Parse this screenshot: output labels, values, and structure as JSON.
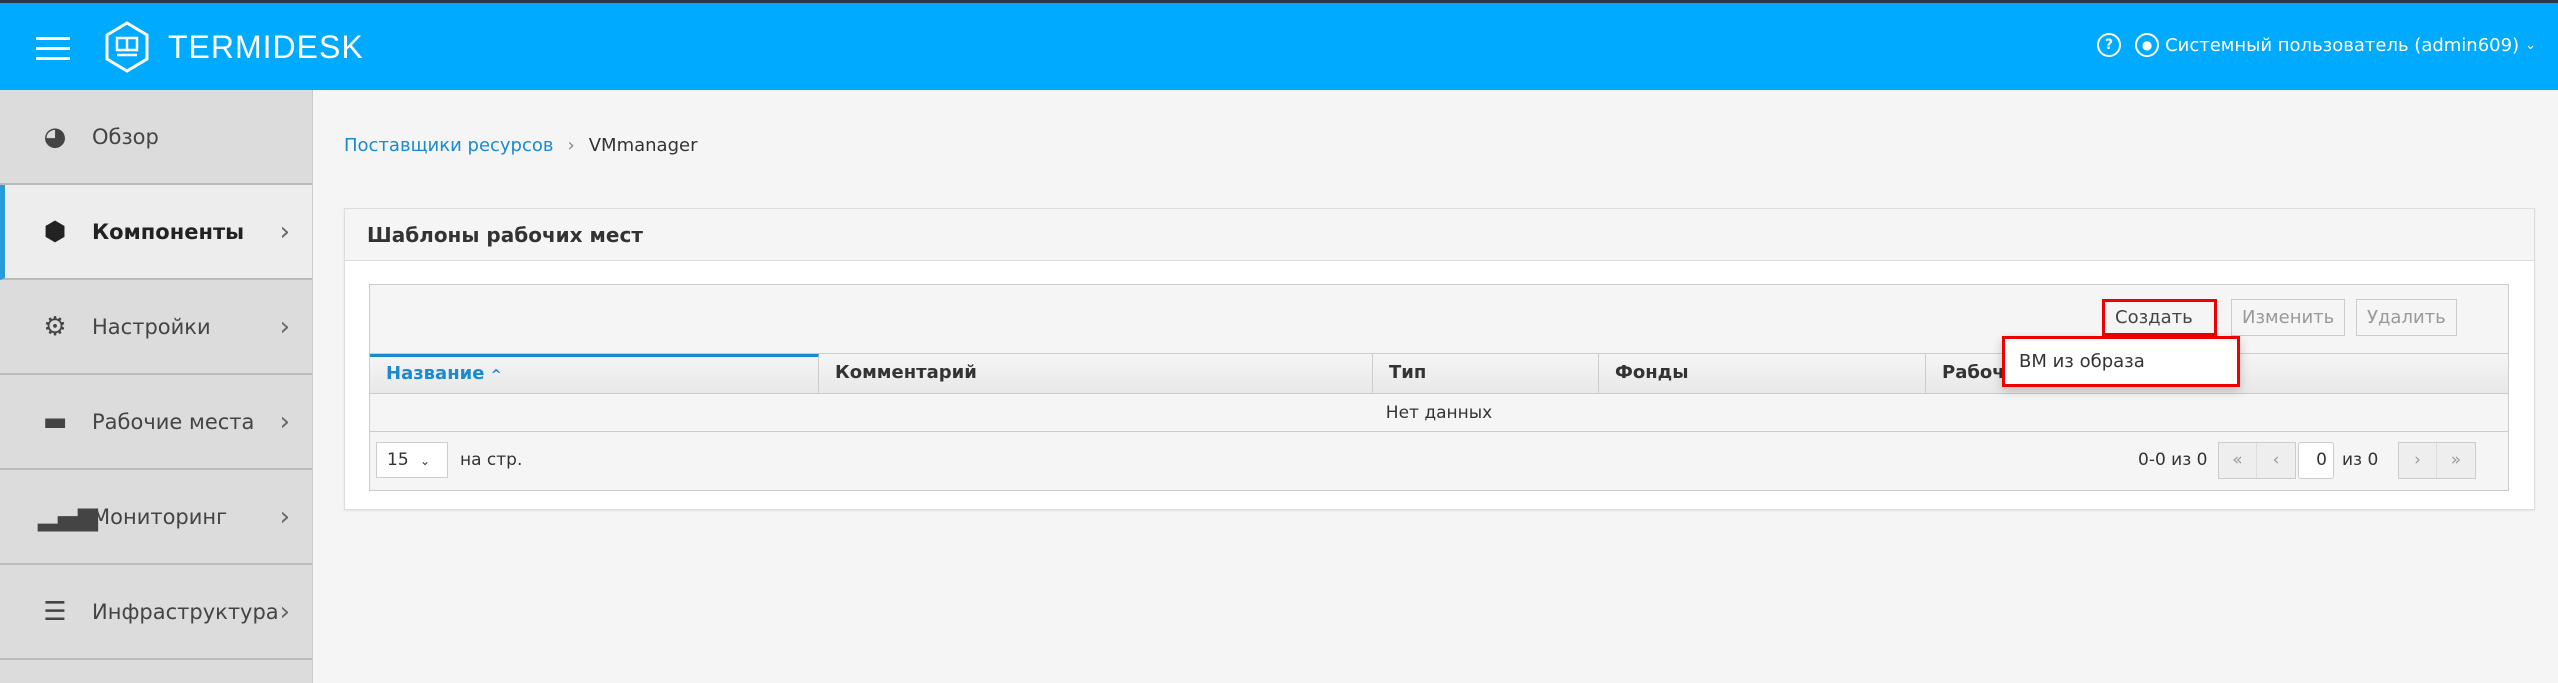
{
  "header": {
    "logo": "TERMIDESK",
    "user": "Системный пользователь (admin609)",
    "help_icon": "question-circle",
    "user_icon": "user-circle"
  },
  "sidebar": {
    "items": [
      {
        "label": "Обзор",
        "icon": "dashboard"
      },
      {
        "label": "Компоненты",
        "icon": "cubes",
        "active": true
      },
      {
        "label": "Настройки",
        "icon": "gears"
      },
      {
        "label": "Рабочие места",
        "icon": "desktop"
      },
      {
        "label": "Мониторинг",
        "icon": "signal-bars"
      },
      {
        "label": "Инфраструктура",
        "icon": "server"
      }
    ]
  },
  "breadcrumb": {
    "parent": "Поставщики ресурсов",
    "current": "VMmanager"
  },
  "panel": {
    "title": "Шаблоны рабочих мест",
    "toolbar": {
      "create": "Создать",
      "edit": "Изменить",
      "delete": "Удалить"
    },
    "dropdown": [
      "ВМ из образа"
    ],
    "columns": [
      "Название",
      "Комментарий",
      "Тип",
      "Фонды",
      "Рабочие"
    ],
    "sort_indicator": "^",
    "empty": "Нет данных",
    "page_size": "15",
    "per_page": "на стр.",
    "range": "0-0 из 0",
    "page": "0",
    "of_pages": "из 0"
  },
  "colors": {
    "header": "#00aaff",
    "accent": "#1a8ad0",
    "highlight": "#ee0000"
  }
}
